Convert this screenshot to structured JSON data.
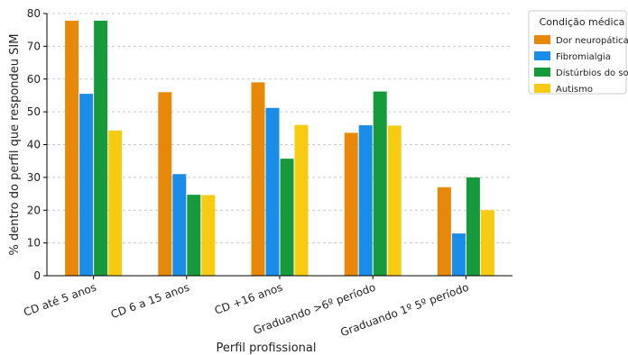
{
  "chart_data": {
    "type": "bar",
    "title": "",
    "xlabel": "Perfil profissional",
    "ylabel": "% dentro do perfil que respondeu SIM",
    "ylim": [
      0,
      80
    ],
    "yticks": [
      0,
      10,
      20,
      30,
      40,
      50,
      60,
      70,
      80
    ],
    "grid": "horizontal dashed",
    "legend_position": "right",
    "legend_title": "Condição médica",
    "categories": [
      "CD até 5 anos",
      "CD 6 a 15 anos",
      "CD +16 anos",
      "Graduando >6º período",
      "Graduando 1º 5º período"
    ],
    "series": [
      {
        "name": "Dor neuropática",
        "color": "#e8880a",
        "values": [
          77.8,
          56.0,
          59.0,
          43.6,
          27.0
        ]
      },
      {
        "name": "Fibromialgia",
        "color": "#1a8de8",
        "values": [
          55.5,
          31.0,
          51.2,
          45.9,
          12.9
        ]
      },
      {
        "name": "Distúrbios do sono",
        "color": "#169a3c",
        "values": [
          77.8,
          24.7,
          35.7,
          56.2,
          30.0
        ]
      },
      {
        "name": "Autismo",
        "color": "#f6cb12",
        "values": [
          44.3,
          24.6,
          46.0,
          45.8,
          20.0
        ]
      }
    ]
  }
}
